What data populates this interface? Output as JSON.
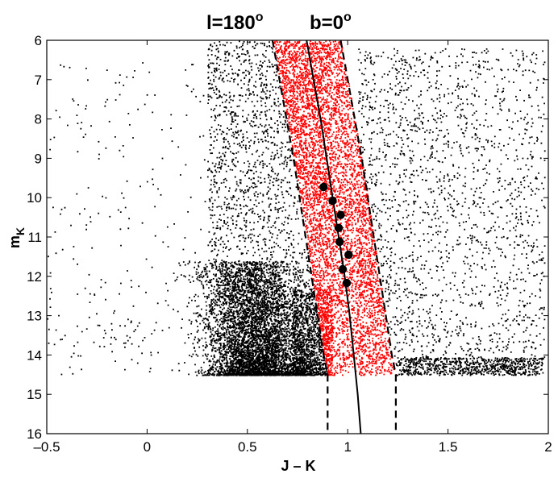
{
  "chart_data": {
    "type": "scatter",
    "title_l": "l=180",
    "title_b": "b=0",
    "title_sup": "o",
    "xlabel": "J – K",
    "ylabel_main": "m",
    "ylabel_sub": "K",
    "xlim": [
      -0.5,
      2
    ],
    "ylim": [
      16,
      6
    ],
    "y_inverted": true,
    "xticks": [
      -0.5,
      0,
      0.5,
      1,
      1.5,
      2
    ],
    "xtick_labels": [
      "–0.5",
      "0",
      "0.5",
      "1",
      "1.5",
      "2"
    ],
    "yticks": [
      6,
      7,
      8,
      9,
      10,
      11,
      12,
      13,
      14,
      15,
      16
    ],
    "ytick_labels": [
      "6",
      "7",
      "8",
      "9",
      "10",
      "11",
      "12",
      "13",
      "14",
      "15",
      "16"
    ],
    "grid": false,
    "colors": {
      "background_stars": "#000000",
      "selected_stars": "#ff0000",
      "curves": "#000000",
      "markers": "#000000"
    },
    "magnitude_limit": 14.5,
    "center_curve": {
      "style": "solid",
      "points": [
        [
          0.795,
          6
        ],
        [
          0.83,
          7
        ],
        [
          0.865,
          8
        ],
        [
          0.895,
          9
        ],
        [
          0.925,
          10
        ],
        [
          0.955,
          11
        ],
        [
          0.985,
          12
        ],
        [
          1.01,
          13
        ],
        [
          1.03,
          14
        ],
        [
          1.05,
          15
        ],
        [
          1.065,
          16
        ]
      ]
    },
    "left_boundary": {
      "style": "dashed",
      "points": [
        [
          0.625,
          6
        ],
        [
          0.66,
          7
        ],
        [
          0.695,
          8
        ],
        [
          0.73,
          9
        ],
        [
          0.76,
          10
        ],
        [
          0.79,
          11
        ],
        [
          0.82,
          12
        ],
        [
          0.85,
          13
        ],
        [
          0.88,
          14
        ],
        [
          0.9,
          14.5
        ],
        [
          0.9,
          16
        ]
      ]
    },
    "right_boundary": {
      "style": "dashed",
      "points": [
        [
          0.965,
          6
        ],
        [
          1.0,
          7
        ],
        [
          1.035,
          8
        ],
        [
          1.07,
          9
        ],
        [
          1.1,
          10
        ],
        [
          1.13,
          11
        ],
        [
          1.16,
          12
        ],
        [
          1.19,
          13
        ],
        [
          1.22,
          14
        ],
        [
          1.24,
          14.5
        ],
        [
          1.24,
          16
        ]
      ]
    },
    "binned_means": {
      "marker": "circle",
      "points": [
        [
          0.88,
          9.73
        ],
        [
          0.925,
          10.08
        ],
        [
          0.965,
          10.44
        ],
        [
          0.955,
          10.77
        ],
        [
          0.96,
          11.12
        ],
        [
          1.005,
          11.45
        ],
        [
          0.975,
          11.82
        ],
        [
          0.995,
          12.17
        ]
      ]
    },
    "background_stars": {
      "approx_count": 9000,
      "densest_region": {
        "x": [
          0.35,
          0.9
        ],
        "y": [
          12,
          14.5
        ]
      }
    },
    "selected_stars": {
      "approx_count": 4500,
      "region": "between dashed boundaries"
    }
  }
}
